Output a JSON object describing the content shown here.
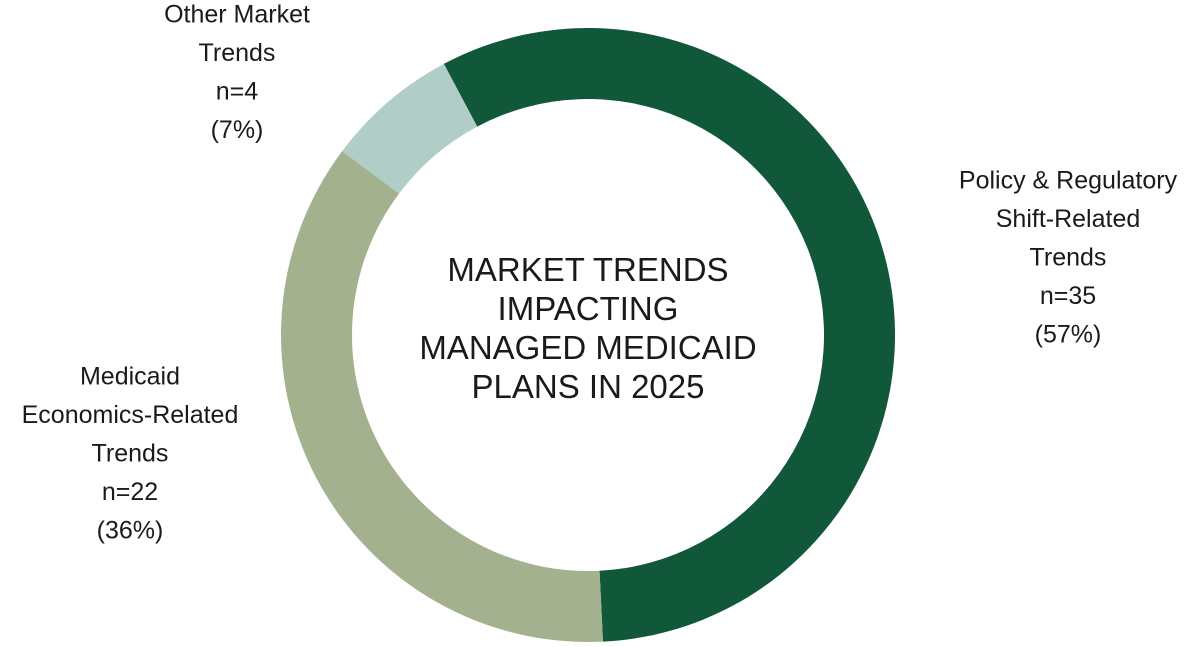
{
  "chart_data": {
    "type": "donut",
    "title": [
      "MARKET TRENDS",
      "IMPACTING",
      "MANAGED MEDICAID",
      "PLANS IN 2025"
    ],
    "categories": [
      [
        "Policy & Regulatory",
        "Shift-Related",
        "Trends"
      ],
      [
        "Medicaid",
        "Economics-Related",
        "Trends"
      ],
      [
        "Other Market",
        "Trends"
      ]
    ],
    "counts": [
      "n=35",
      "n=22",
      "n=4"
    ],
    "values": [
      57,
      36,
      7
    ],
    "value_labels": [
      "(57%)",
      "(36%)",
      "(7%)"
    ],
    "colors": [
      "#115739",
      "#a3b18f",
      "#b0cdc8"
    ]
  }
}
